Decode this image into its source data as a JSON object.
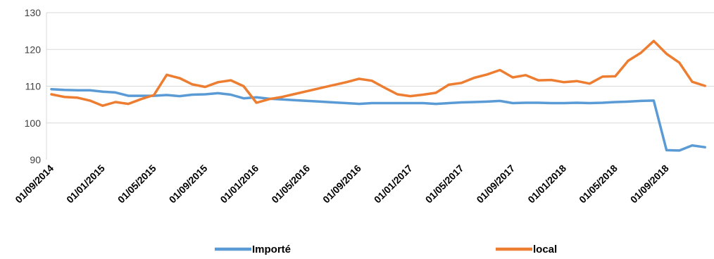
{
  "chart_data": {
    "type": "line",
    "title": "",
    "xlabel": "",
    "ylabel": "",
    "ylim": [
      90,
      130
    ],
    "yticks": [
      90,
      100,
      110,
      120,
      130
    ],
    "grid": "horizontal",
    "legend_position": "bottom",
    "x_tick_labels": [
      "01/09/2014",
      "01/01/2015",
      "01/05/2015",
      "01/09/2015",
      "01/01/2016",
      "01/05/2016",
      "01/09/2016",
      "01/01/2017",
      "01/05/2017",
      "01/09/2017",
      "01/01/2018",
      "01/05/2018",
      "01/09/2018"
    ],
    "x": [
      "2014-09",
      "2014-10",
      "2014-11",
      "2014-12",
      "2015-01",
      "2015-02",
      "2015-03",
      "2015-04",
      "2015-05",
      "2015-06",
      "2015-07",
      "2015-08",
      "2015-09",
      "2015-10",
      "2015-11",
      "2015-12",
      "2016-01",
      "2016-02",
      "2016-03",
      "2016-04",
      "2016-05",
      "2016-06",
      "2016-07",
      "2016-08",
      "2016-09",
      "2016-10",
      "2016-11",
      "2016-12",
      "2017-01",
      "2017-02",
      "2017-03",
      "2017-04",
      "2017-05",
      "2017-06",
      "2017-07",
      "2017-08",
      "2017-09",
      "2017-10",
      "2017-11",
      "2017-12",
      "2018-01",
      "2018-02",
      "2018-03",
      "2018-04",
      "2018-05",
      "2018-06",
      "2018-07",
      "2018-08",
      "2018-09",
      "2018-10",
      "2018-11",
      "2018-12"
    ],
    "series": [
      {
        "name": "Importé",
        "color": "#5B9BD5",
        "values": [
          109.2,
          109.0,
          108.9,
          108.9,
          108.5,
          108.3,
          107.4,
          107.4,
          107.4,
          107.6,
          107.3,
          107.7,
          107.8,
          108.1,
          107.7,
          106.7,
          107.0,
          106.6,
          106.4,
          106.2,
          106.0,
          105.8,
          105.6,
          105.4,
          105.2,
          105.4,
          105.4,
          105.4,
          105.4,
          105.4,
          105.2,
          105.4,
          105.6,
          105.7,
          105.8,
          106.0,
          105.4,
          105.5,
          105.5,
          105.4,
          105.4,
          105.5,
          105.4,
          105.5,
          105.7,
          105.8,
          106.0,
          106.1,
          92.6,
          92.5,
          93.9,
          93.4
        ]
      },
      {
        "name": "local",
        "color": "#ED7D31",
        "values": [
          107.8,
          107.1,
          106.9,
          106.1,
          104.7,
          105.7,
          105.2,
          106.5,
          107.6,
          113.1,
          112.2,
          110.5,
          109.8,
          111.1,
          111.6,
          110.0,
          105.5,
          106.5,
          107.1,
          107.9,
          108.7,
          109.5,
          110.3,
          111.1,
          112.0,
          111.5,
          109.6,
          107.8,
          107.3,
          107.7,
          108.2,
          110.4,
          110.9,
          112.3,
          113.2,
          114.4,
          112.4,
          113.0,
          111.6,
          111.7,
          111.1,
          111.4,
          110.7,
          112.6,
          112.7,
          116.9,
          119.1,
          122.3,
          118.8,
          116.4,
          111.2,
          110.1
        ]
      }
    ]
  }
}
